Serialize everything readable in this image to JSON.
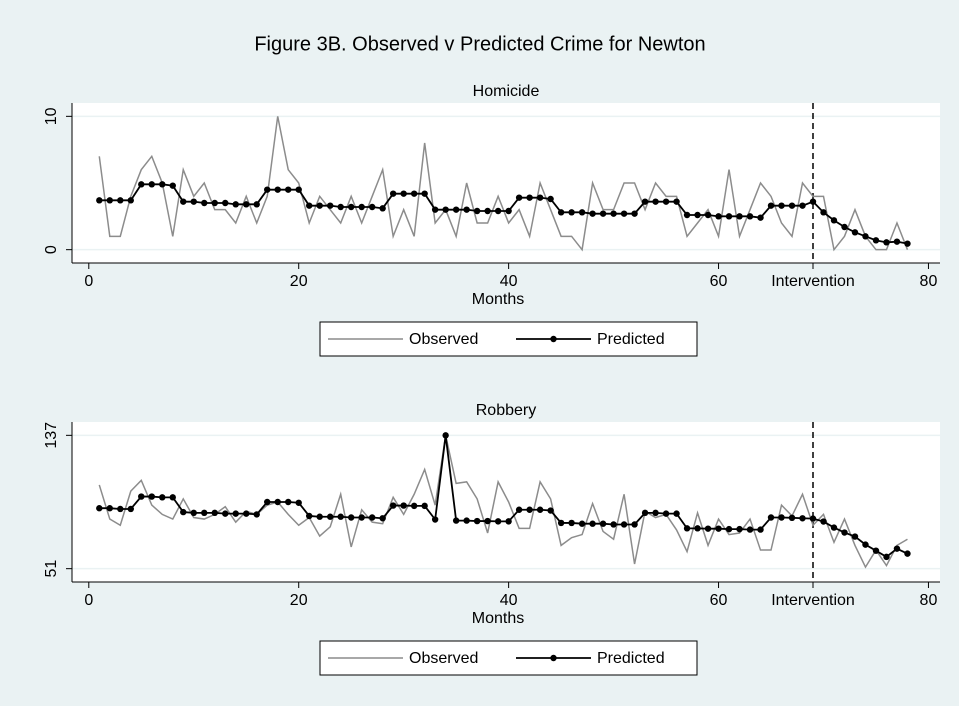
{
  "title": "Figure 3B. Observed v Predicted Crime for Newton",
  "chart_data": [
    {
      "type": "line",
      "title": "Homicide",
      "xlabel": "Months",
      "x": [
        1,
        2,
        3,
        4,
        5,
        6,
        7,
        8,
        9,
        10,
        11,
        12,
        13,
        14,
        15,
        16,
        17,
        18,
        19,
        20,
        21,
        22,
        23,
        24,
        25,
        26,
        27,
        28,
        29,
        30,
        31,
        32,
        33,
        34,
        35,
        36,
        37,
        38,
        39,
        40,
        41,
        42,
        43,
        44,
        45,
        46,
        47,
        48,
        49,
        50,
        51,
        52,
        53,
        54,
        55,
        56,
        57,
        58,
        59,
        60,
        61,
        62,
        63,
        64,
        65,
        66,
        67,
        68,
        69,
        70,
        71,
        72,
        73,
        74,
        75,
        76,
        77,
        78
      ],
      "xlim": [
        -1.6,
        81.1
      ],
      "xticks": [
        0,
        20,
        40,
        60,
        {
          "value": 69,
          "label": "Intervention"
        },
        80
      ],
      "ylim": [
        -1,
        11
      ],
      "yticks": [
        0,
        10
      ],
      "grid": true,
      "vline": 69,
      "series": [
        {
          "name": "Observed",
          "color": "#8c8c8c",
          "marker": false,
          "values": [
            7,
            1,
            1,
            4,
            6,
            7,
            5,
            1,
            6,
            4,
            5,
            3,
            3,
            2,
            4,
            2,
            4,
            10,
            6,
            5,
            2,
            4,
            3,
            2,
            4,
            2,
            4,
            6,
            1,
            3,
            1,
            8,
            2,
            3,
            1,
            5,
            2,
            2,
            4,
            2,
            3,
            1,
            5,
            3,
            1,
            1,
            0,
            5,
            3,
            3,
            5,
            5,
            3,
            5,
            4,
            4,
            1,
            2,
            3,
            1,
            6,
            1,
            3,
            5,
            4,
            2,
            1,
            5,
            4,
            4,
            0,
            1,
            3,
            1,
            0,
            0,
            2,
            0
          ]
        },
        {
          "name": "Predicted",
          "color": "#000000",
          "marker": true,
          "values": [
            3.7,
            3.7,
            3.7,
            3.7,
            4.9,
            4.9,
            4.9,
            4.8,
            3.6,
            3.6,
            3.5,
            3.5,
            3.5,
            3.4,
            3.4,
            3.4,
            4.5,
            4.5,
            4.5,
            4.5,
            3.3,
            3.3,
            3.3,
            3.2,
            3.2,
            3.2,
            3.2,
            3.1,
            4.2,
            4.2,
            4.2,
            4.2,
            3.0,
            3.0,
            3.0,
            3.0,
            2.9,
            2.9,
            2.9,
            2.9,
            3.9,
            3.9,
            3.9,
            3.8,
            2.8,
            2.8,
            2.8,
            2.7,
            2.7,
            2.7,
            2.7,
            2.7,
            3.6,
            3.6,
            3.6,
            3.6,
            2.6,
            2.6,
            2.6,
            2.5,
            2.5,
            2.5,
            2.5,
            2.4,
            3.3,
            3.3,
            3.3,
            3.3,
            3.6,
            2.8,
            2.2,
            1.7,
            1.3,
            1.0,
            0.7,
            0.55,
            0.6,
            0.45
          ]
        }
      ]
    },
    {
      "type": "line",
      "title": "Robbery",
      "xlabel": "Months",
      "x": [
        1,
        2,
        3,
        4,
        5,
        6,
        7,
        8,
        9,
        10,
        11,
        12,
        13,
        14,
        15,
        16,
        17,
        18,
        19,
        20,
        21,
        22,
        23,
        24,
        25,
        26,
        27,
        28,
        29,
        30,
        31,
        32,
        33,
        34,
        35,
        36,
        37,
        38,
        39,
        40,
        41,
        42,
        43,
        44,
        45,
        46,
        47,
        48,
        49,
        50,
        51,
        52,
        53,
        54,
        55,
        56,
        57,
        58,
        59,
        60,
        61,
        62,
        63,
        64,
        65,
        66,
        67,
        68,
        69,
        70,
        71,
        72,
        73,
        74,
        75,
        76,
        77,
        78
      ],
      "xlim": [
        -1.6,
        81.1
      ],
      "xticks": [
        0,
        20,
        40,
        60,
        {
          "value": 69,
          "label": "Intervention"
        },
        80
      ],
      "ylim": [
        42.4,
        145.6
      ],
      "yticks": [
        51,
        137
      ],
      "grid": true,
      "vline": 69,
      "series": [
        {
          "name": "Observed",
          "color": "#8c8c8c",
          "marker": false,
          "values": [
            105,
            83,
            79,
            101,
            108,
            92,
            86,
            83,
            96,
            84,
            83,
            86,
            91,
            81,
            88,
            86,
            92,
            94,
            86,
            79,
            84,
            72,
            78,
            99,
            65,
            89,
            81,
            80,
            97,
            86,
            99,
            115,
            92,
            137,
            106,
            107,
            96,
            74,
            107,
            94,
            77,
            77,
            107,
            96,
            66,
            71,
            73,
            93,
            75,
            70,
            99,
            54,
            88,
            84,
            86,
            76,
            62,
            87,
            66,
            83,
            73,
            74,
            83,
            63,
            63,
            92,
            85,
            99,
            79,
            86,
            68,
            83,
            66,
            52,
            63,
            53,
            66,
            70
          ]
        },
        {
          "name": "Predicted",
          "color": "#000000",
          "marker": true,
          "values": [
            90,
            90,
            89.5,
            89.5,
            97.5,
            97.5,
            97,
            97,
            87.5,
            87,
            87,
            87,
            86.5,
            86.5,
            86.5,
            86,
            94,
            94,
            94,
            93.5,
            85,
            84.5,
            84.5,
            84.5,
            84,
            84,
            84,
            83.5,
            91.7,
            91.7,
            91.5,
            91.5,
            82.7,
            137,
            82,
            82,
            81.7,
            81.7,
            81.5,
            81.5,
            89,
            89,
            89,
            88.5,
            80.5,
            80.5,
            80,
            80,
            80,
            79.5,
            79.5,
            79.5,
            87,
            87,
            86.5,
            86.5,
            77,
            77,
            76.8,
            76.8,
            76.5,
            76.5,
            76.2,
            76.2,
            84,
            84,
            83.8,
            83.5,
            83.3,
            81.4,
            77.5,
            74.3,
            71.7,
            66.5,
            62.6,
            58.6,
            63.9,
            60.7
          ]
        }
      ]
    }
  ]
}
